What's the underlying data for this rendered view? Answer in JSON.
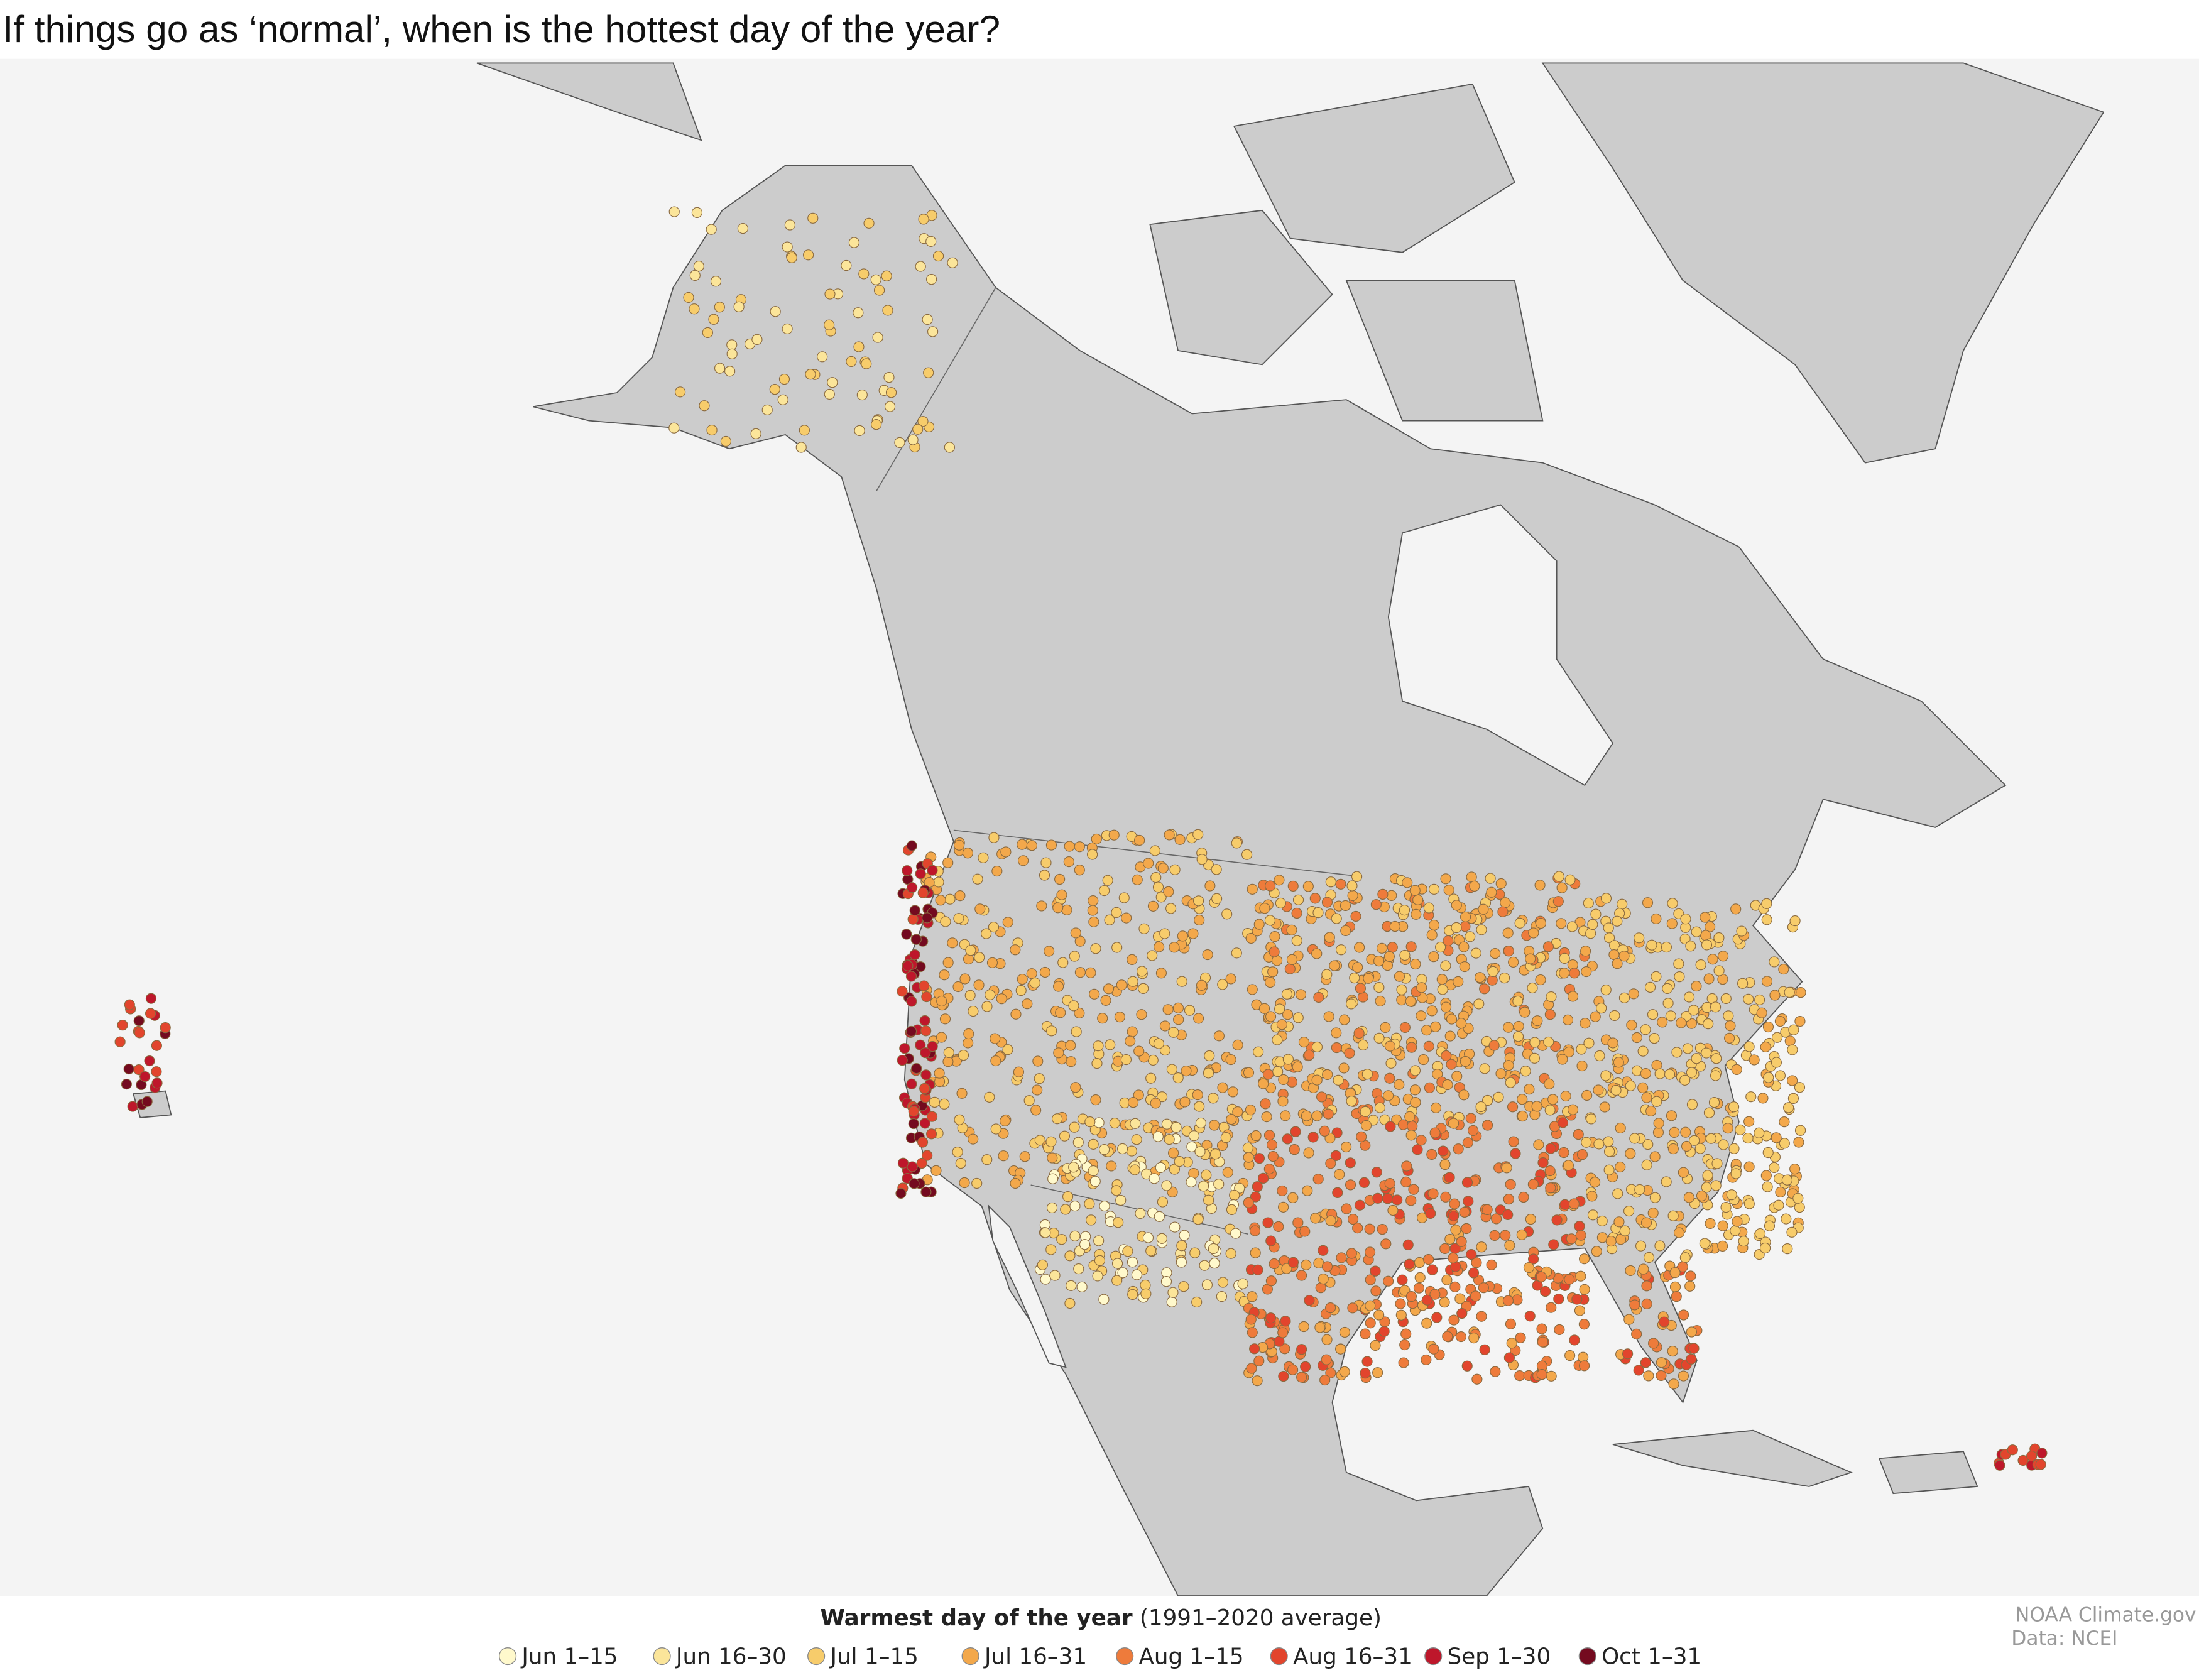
{
  "title": "If things go as ‘normal’, when is the hottest day of the year?",
  "legend": {
    "title_bold": "Warmest day of the year",
    "title_rest": "(1991–2020 average)",
    "items": [
      {
        "label": "Jun 1–15",
        "color": "#fff9cc"
      },
      {
        "label": "Jun 16–30",
        "color": "#fbe59a"
      },
      {
        "label": "Jul 1–15",
        "color": "#f7cc6b"
      },
      {
        "label": "Jul 16–31",
        "color": "#f3a84b"
      },
      {
        "label": "Aug 1–15",
        "color": "#ee7b3b"
      },
      {
        "label": "Aug 16–31",
        "color": "#e2452d"
      },
      {
        "label": "Sep 1–30",
        "color": "#be172b"
      },
      {
        "label": "Oct 1–31",
        "color": "#740a1f"
      }
    ]
  },
  "credits": [
    "NOAA Climate.gov",
    "Data: NCEI"
  ]
}
